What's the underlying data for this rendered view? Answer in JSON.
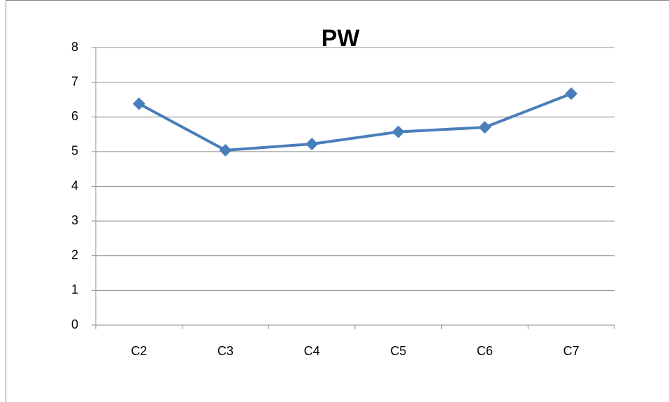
{
  "chart_data": {
    "type": "line",
    "title": "PW",
    "categories": [
      "C2",
      "C3",
      "C4",
      "C5",
      "C6",
      "C7"
    ],
    "series": [
      {
        "name": "PW",
        "color": "#4a7ebb",
        "values": [
          6.38,
          5.04,
          5.22,
          5.57,
          5.7,
          6.67
        ]
      }
    ],
    "ylim": [
      0,
      8
    ],
    "yticks": [
      0,
      1,
      2,
      3,
      4,
      5,
      6,
      7,
      8
    ],
    "grid": true
  }
}
